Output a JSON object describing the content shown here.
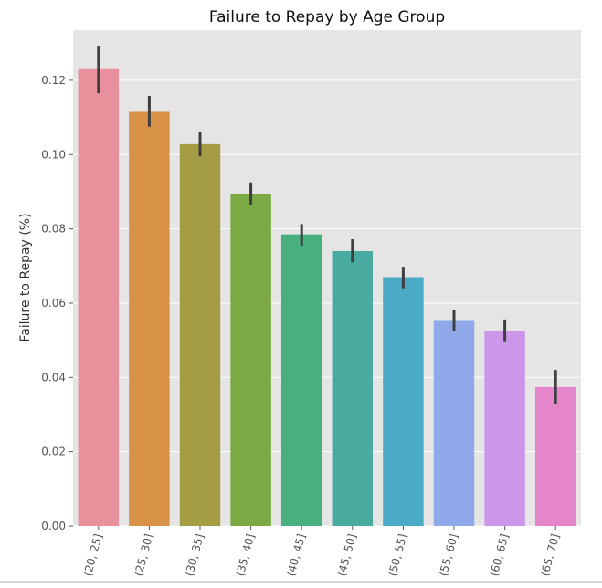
{
  "chart_data": {
    "type": "bar",
    "title": "Failure to Repay by Age Group",
    "xlabel": "",
    "ylabel": "Failure to Repay (%)",
    "categories": [
      "(20, 25]",
      "(25, 30]",
      "(30, 35]",
      "(35, 40]",
      "(40, 45]",
      "(45, 50]",
      "(50, 55]",
      "(55, 60]",
      "(60, 65]",
      "(65, 70]"
    ],
    "values": [
      0.123,
      0.1115,
      0.1028,
      0.0893,
      0.0785,
      0.074,
      0.067,
      0.0552,
      0.0526,
      0.0374
    ],
    "error_low": [
      0.1165,
      0.1075,
      0.0995,
      0.0865,
      0.0755,
      0.071,
      0.064,
      0.0525,
      0.0495,
      0.0328
    ],
    "error_high": [
      0.1293,
      0.1158,
      0.106,
      0.0925,
      0.0813,
      0.0772,
      0.0698,
      0.0582,
      0.0556,
      0.042
    ],
    "colors": [
      "#E8919D",
      "#D79247",
      "#A49D43",
      "#7BA943",
      "#47B07E",
      "#49AAA0",
      "#4BAAC6",
      "#90A9EA",
      "#CC97E9",
      "#E586CA"
    ],
    "yticks": [
      "0.00",
      "0.02",
      "0.04",
      "0.06",
      "0.08",
      "0.10",
      "0.12"
    ],
    "ylim": [
      0,
      0.1335
    ],
    "grid": true,
    "legend": "none"
  }
}
